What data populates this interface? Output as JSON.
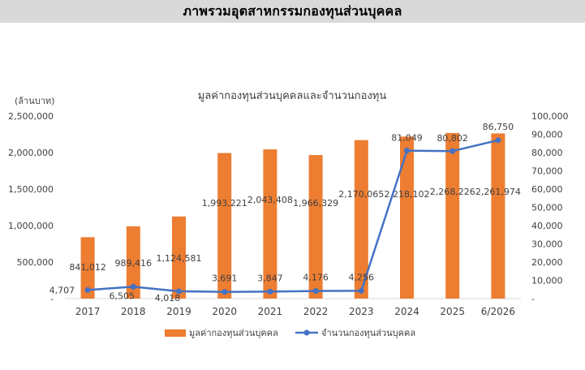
{
  "page": {
    "header_title": "ภาพรวมอุตสาหกรรมกองทุนส่วนบุคคล"
  },
  "chart_data": {
    "type": "bar",
    "title": "มูลค่ากองทุนส่วนบุคคลและจำนวนกองทุน",
    "y_unit_label": "(ล้านบาท)",
    "categories": [
      "2017",
      "2018",
      "2019",
      "2020",
      "2021",
      "2022",
      "2023",
      "2024",
      "2025",
      "6/2026"
    ],
    "series": [
      {
        "name": "มูลค่ากองทุนส่วนบุคคล",
        "type": "bar",
        "axis": "left",
        "color": "#ed7d31",
        "values": [
          841012,
          989416,
          1124581,
          1993221,
          2043408,
          1966329,
          2170065,
          2218102,
          2268226,
          2261974
        ],
        "labels": [
          "841,012",
          "989,416",
          "1,124,581",
          "1,993,221",
          "2,043,408",
          "1,966,329",
          "2,170,065",
          "2,218,102",
          "2,268,226",
          "2,261,974"
        ]
      },
      {
        "name": "จำนวนกองทุนส่วนบุคคล",
        "type": "line",
        "axis": "right",
        "color": "#4472c4",
        "values": [
          4707,
          6505,
          4018,
          3691,
          3847,
          4176,
          4256,
          81049,
          80802,
          86750
        ],
        "labels": [
          "4,707",
          "6,505",
          "4,018",
          "3,691",
          "3,847",
          "4,176",
          "4,256",
          "81,049",
          "80,802",
          "86,750"
        ]
      }
    ],
    "left_axis": {
      "ylim": [
        0,
        2500000
      ],
      "ticks": [
        0,
        500000,
        1000000,
        1500000,
        2000000,
        2500000
      ],
      "tick_labels": [
        "-",
        "500,000",
        "1,000,000",
        "1,500,000",
        "2,000,000",
        "2,500,000"
      ]
    },
    "right_axis": {
      "ylim": [
        0,
        100000
      ],
      "ticks": [
        0,
        10000,
        20000,
        30000,
        40000,
        50000,
        60000,
        70000,
        80000,
        90000,
        100000
      ],
      "tick_labels": [
        "-",
        "10,000",
        "20,000",
        "30,000",
        "40,000",
        "50,000",
        "60,000",
        "70,000",
        "80,000",
        "90,000",
        "100,000"
      ]
    },
    "grid": false,
    "legend": "bottom"
  }
}
